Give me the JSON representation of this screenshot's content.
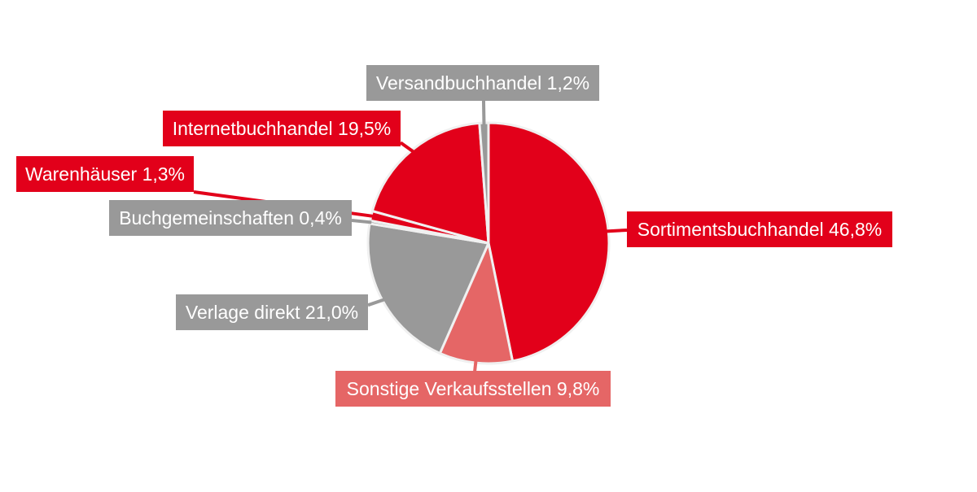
{
  "chart_data": {
    "type": "pie",
    "colors": {
      "red": "#e2001a",
      "light_red": "#e56666",
      "gray": "#999999",
      "slice_border": "#f0f0f0"
    },
    "slices": [
      {
        "label": "Sortimentsbuchhandel",
        "value": 46.8,
        "display": "Sortimentsbuchhandel 46,8%",
        "color": "#e2001a"
      },
      {
        "label": "Sonstige Verkaufsstellen",
        "value": 9.8,
        "display": "Sonstige Verkaufsstellen 9,8%",
        "color": "#e56666"
      },
      {
        "label": "Verlage direkt",
        "value": 21.0,
        "display": "Verlage direkt 21,0%",
        "color": "#999999"
      },
      {
        "label": "Buchgemeinschaften",
        "value": 0.4,
        "display": "Buchgemeinschaften 0,4%",
        "color": "#999999"
      },
      {
        "label": "Warenhäuser",
        "value": 1.3,
        "display": "Warenhäuser 1,3%",
        "color": "#e2001a"
      },
      {
        "label": "Internetbuchhandel",
        "value": 19.5,
        "display": "Internetbuchhandel 19,5%",
        "color": "#e2001a"
      },
      {
        "label": "Versandbuchhandel",
        "value": 1.2,
        "display": "Versandbuchhandel 1,2%",
        "color": "#999999"
      }
    ]
  }
}
